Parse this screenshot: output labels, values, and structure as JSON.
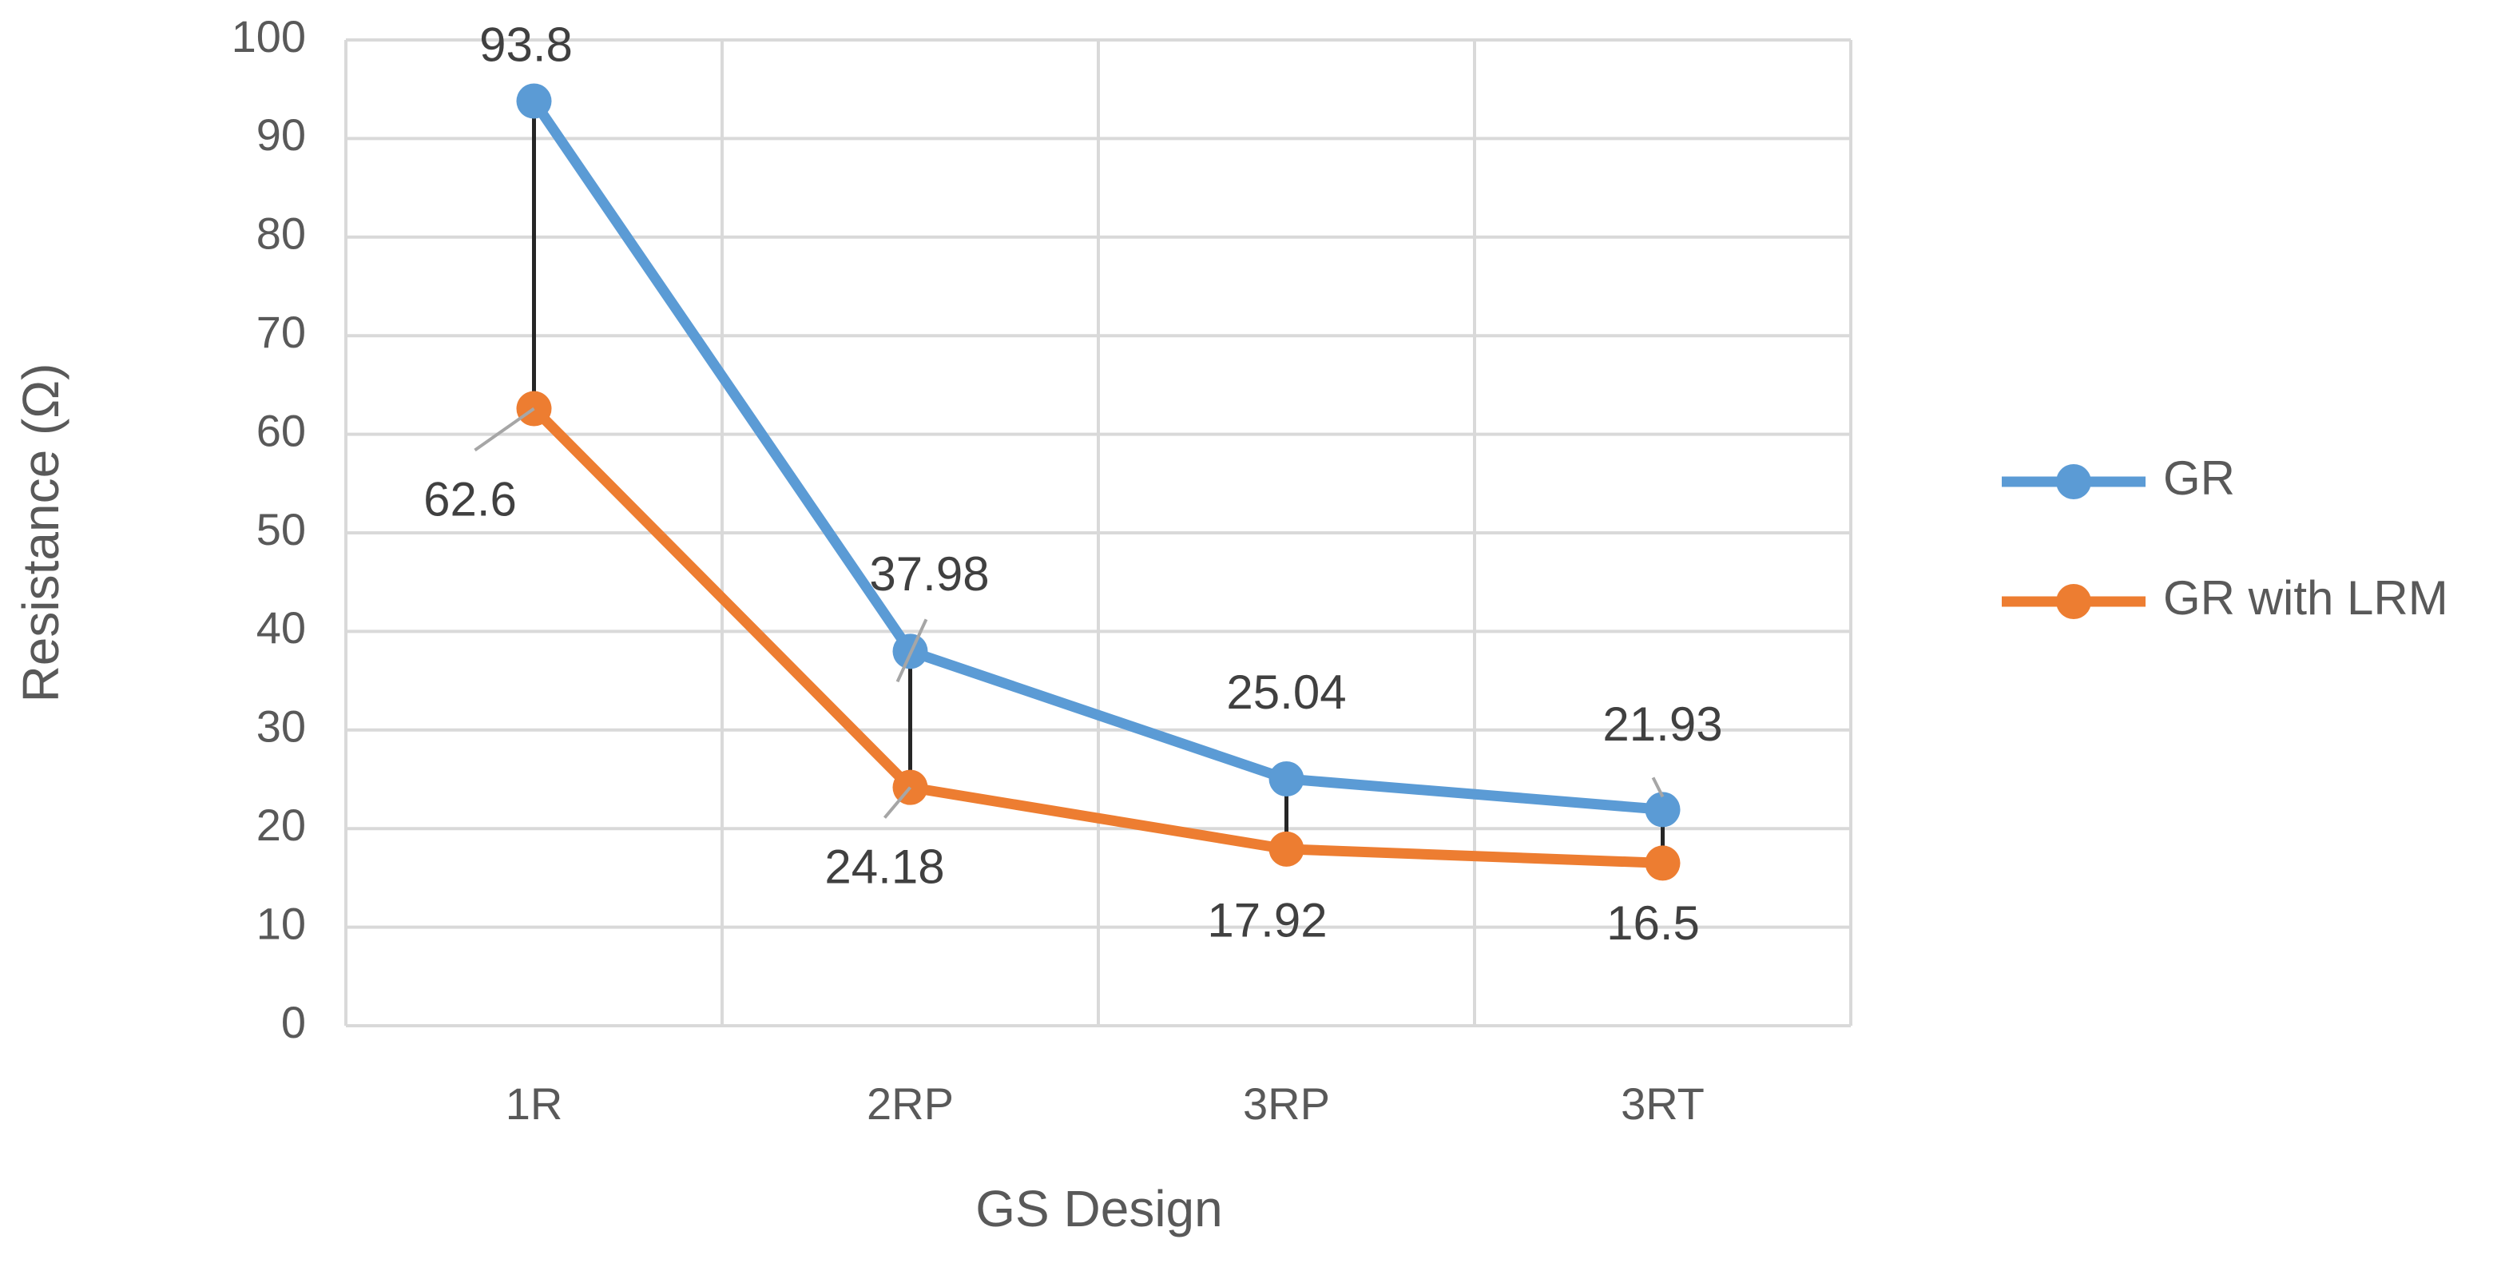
{
  "chart_data": {
    "type": "line",
    "x_label": "GS Design",
    "y_label": "Resistance (Ω)",
    "categories": [
      "1R",
      "2RP",
      "3RP",
      "3RT"
    ],
    "series": [
      {
        "name": "GR",
        "color": "#5b9bd5",
        "values": [
          93.8,
          37.98,
          25.04,
          21.93
        ]
      },
      {
        "name": "GR with LRM",
        "color": "#ed7d31",
        "values": [
          62.6,
          24.18,
          17.92,
          16.5
        ]
      }
    ],
    "ylim": [
      0,
      100
    ],
    "yticks": [
      0,
      10,
      20,
      30,
      40,
      50,
      60,
      70,
      80,
      90,
      100
    ],
    "grid": true,
    "high_low_lines": true,
    "legend": "right"
  }
}
